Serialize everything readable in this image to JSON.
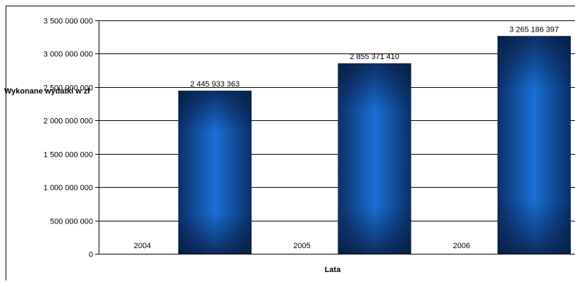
{
  "chart_data": {
    "type": "bar",
    "title": "",
    "xlabel": "Lata",
    "ylabel": "Wykonane wydatki w zł",
    "categories": [
      "2004",
      "2005",
      "2006"
    ],
    "values": [
      2445933363,
      2855371410,
      3265186397
    ],
    "data_labels": [
      "2 445 933 363",
      "2 855 371 410",
      "3 265 186 397"
    ],
    "ylim": [
      0,
      3500000000
    ],
    "y_ticks": [
      0,
      500000000,
      1000000000,
      1500000000,
      2000000000,
      2500000000,
      3000000000,
      3500000000
    ],
    "y_tick_labels": [
      "0",
      "500 000 000",
      "1 000 000 000",
      "1 500 000 000",
      "2 000 000 000",
      "2 500 000 000",
      "3 000 000 000",
      "3 500 000 000"
    ],
    "grid": true,
    "legend": "none",
    "colors": {
      "bar_dark": "#0c2f66",
      "bar_light": "#1a6fd8",
      "grid": "#000000",
      "frame": "#000000"
    }
  }
}
